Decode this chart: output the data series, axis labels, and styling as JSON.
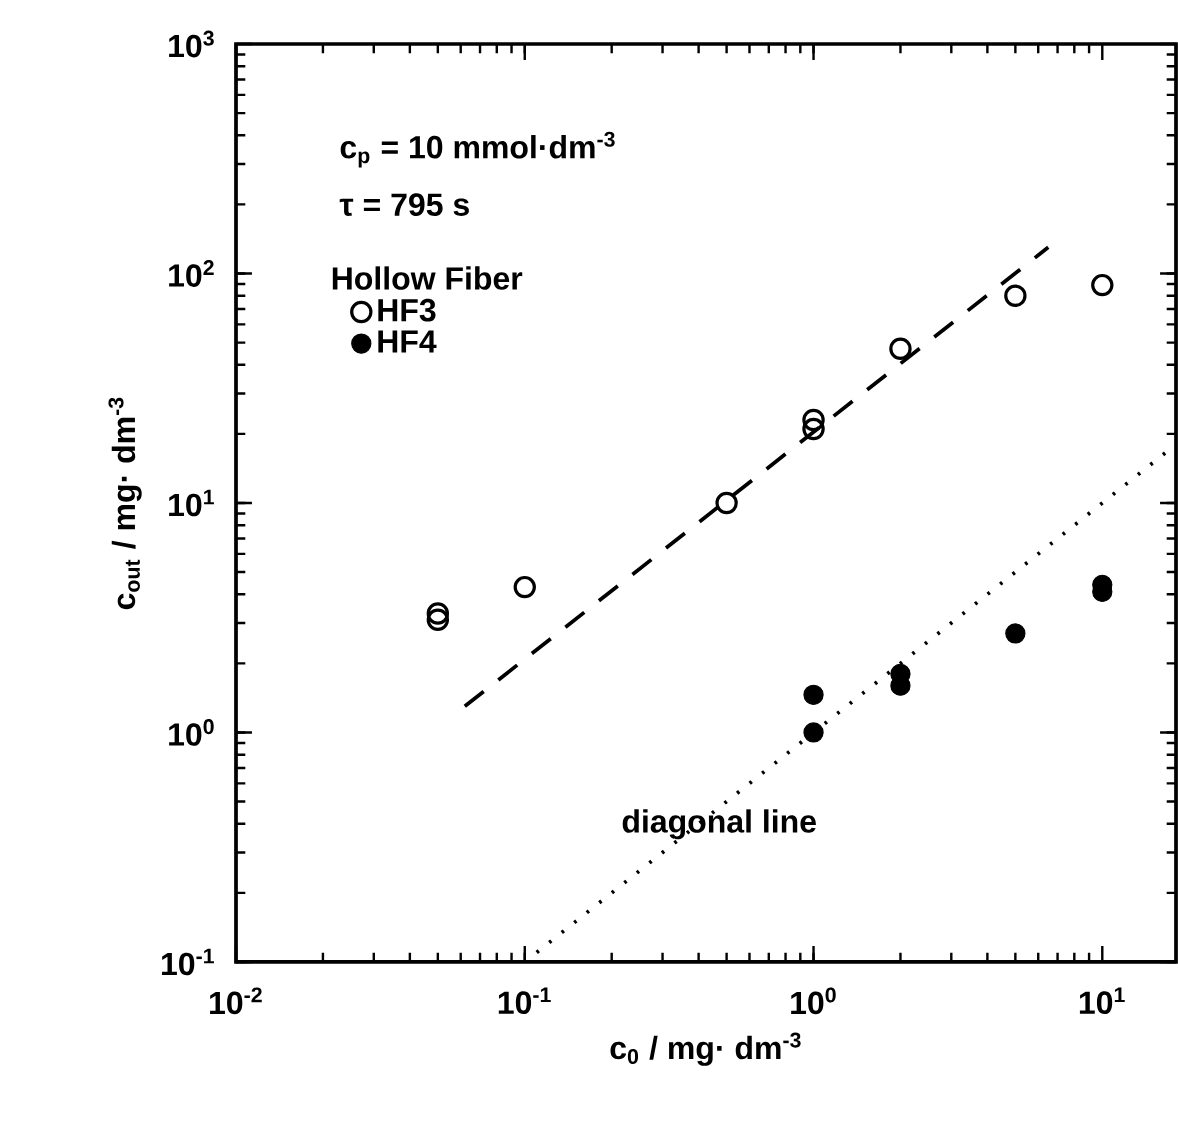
{
  "chart_data": {
    "type": "scatter",
    "xlabel": "c$_{0}$ / mg· dm$^{-3}$",
    "ylabel": "c$_{out}$ / mg· dm$^{-3}$",
    "legend_title": "Hollow Fiber",
    "annotations": [
      "c$_{p}$ = 10 mmol·dm$^{-3}$",
      "τ = 795 s",
      "diagonal line"
    ],
    "log": "xy",
    "legend": "top left",
    "xlim": [
      0.01,
      18
    ],
    "ylim": [
      0.1,
      1000
    ],
    "xticks": [
      {
        "value": 0.01,
        "label": "10$^{-2}$"
      },
      {
        "value": 0.1,
        "label": "10$^{-1}$"
      },
      {
        "value": 1,
        "label": "10$^{0}$"
      },
      {
        "value": 10,
        "label": "10$^{1}$"
      }
    ],
    "yticks": [
      {
        "value": 0.1,
        "label": "10$^{-1}$"
      },
      {
        "value": 1,
        "label": "10$^{0}$"
      },
      {
        "value": 10,
        "label": "10$^{1}$"
      },
      {
        "value": 100,
        "label": "10$^{2}$"
      },
      {
        "value": 1000,
        "label": "10$^{3}$"
      }
    ],
    "series": [
      {
        "name": "HF3",
        "color": "#000000",
        "marker": "circle open",
        "x": [
          0.05,
          0.05,
          0.1,
          0.5,
          1,
          1,
          2,
          5,
          10
        ],
        "values": [
          3.1,
          3.3,
          4.3,
          10,
          21,
          23,
          47,
          80,
          89
        ]
      },
      {
        "name": "HF4",
        "color": "#000000",
        "marker": "circle",
        "x": [
          1,
          1,
          2,
          2,
          5,
          10,
          10
        ],
        "values": [
          1.0,
          1.46,
          1.6,
          1.8,
          2.7,
          4.1,
          4.4
        ]
      },
      {
        "type": "line",
        "color": "#000000",
        "line_style": "dashed",
        "marker": "none",
        "x": [
          0.062,
          6.5
        ],
        "values": [
          1.3,
          130
        ]
      },
      {
        "type": "line",
        "color": "#000000",
        "line_style": "dotted",
        "marker": "none",
        "x": [
          0.11,
          17
        ],
        "values": [
          0.11,
          17
        ]
      }
    ]
  }
}
